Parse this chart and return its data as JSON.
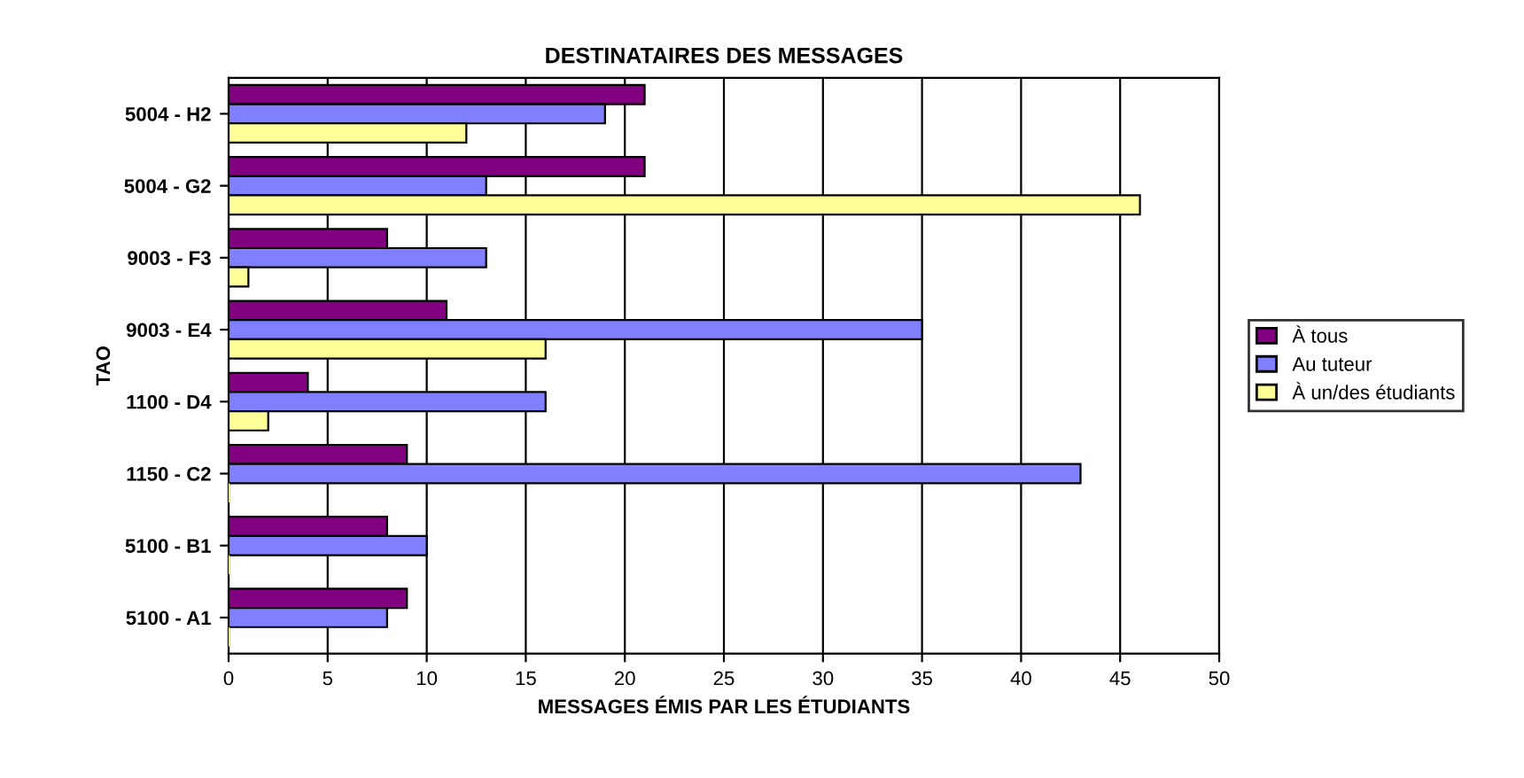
{
  "chart_data": {
    "type": "bar",
    "orientation": "horizontal",
    "title": "DESTINATAIRES DES MESSAGES",
    "xlabel": "MESSAGES ÉMIS PAR LES ÉTUDIANTS",
    "ylabel": "TAO",
    "categories": [
      "5004 - H2",
      "5004 - G2",
      "9003 - F3",
      "9003 - E4",
      "1100 - D4",
      "1150 - C2",
      "5100 - B1",
      "5100 - A1"
    ],
    "series": [
      {
        "name": "À tous",
        "color": "#800080",
        "values": [
          21,
          21,
          8,
          11,
          4,
          9,
          8,
          9
        ]
      },
      {
        "name": "Au tuteur",
        "color": "#8080ff",
        "values": [
          19,
          13,
          13,
          35,
          16,
          43,
          10,
          8
        ]
      },
      {
        "name": "À un/des étudiants",
        "color": "#ffff99",
        "values": [
          12,
          46,
          1,
          16,
          2,
          0,
          0,
          0
        ]
      }
    ],
    "xlim": [
      0,
      50
    ],
    "xticks": [
      0,
      5,
      10,
      15,
      20,
      25,
      30,
      35,
      40,
      45,
      50
    ],
    "grid": "x",
    "legend": "right"
  }
}
